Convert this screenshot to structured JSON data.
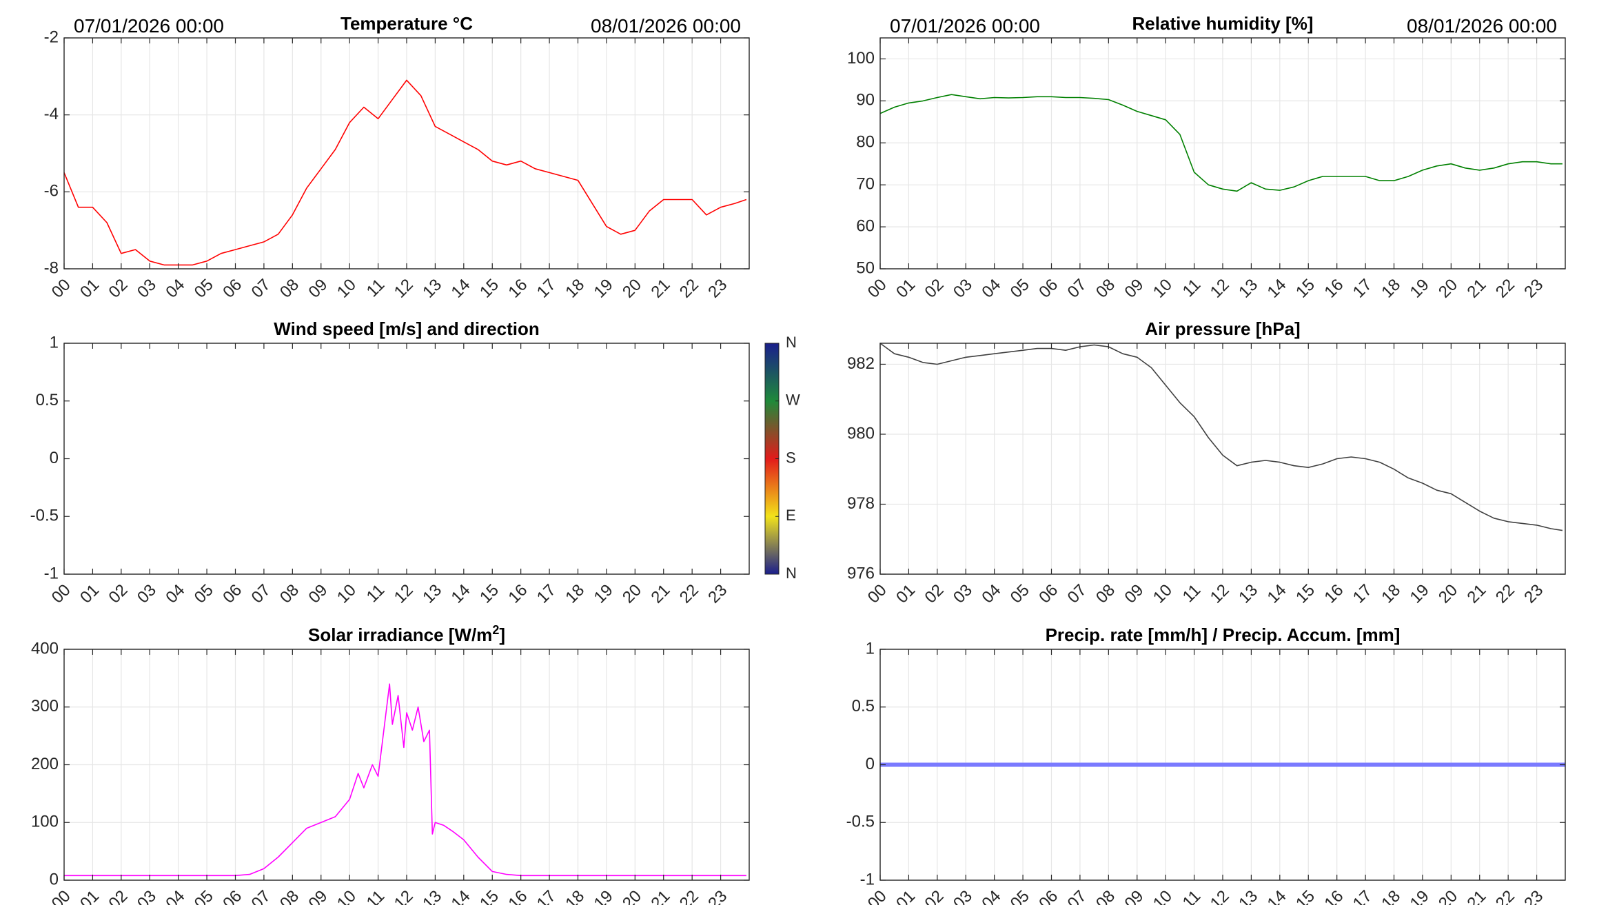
{
  "panels": [
    {
      "id": "temperature",
      "title": "Temperature °C",
      "start_label": "07/01/2026 00:00",
      "end_label": "08/01/2026 00:00"
    },
    {
      "id": "humidity",
      "title": "Relative humidity [%]",
      "start_label": "07/01/2026 00:00",
      "end_label": "08/01/2026 00:00"
    },
    {
      "id": "wind",
      "title": "Wind speed [m/s] and direction"
    },
    {
      "id": "pressure",
      "title": "Air pressure [hPa]"
    },
    {
      "id": "solar",
      "title": "Solar irradiance [W/m",
      "title_sup": "2",
      "title_end": "]"
    },
    {
      "id": "precip",
      "title": "Precip. rate [mm/h] / Precip. Accum. [mm]"
    }
  ],
  "colorbar": {
    "labels": [
      "N",
      "W",
      "S",
      "E",
      "N"
    ],
    "colors": [
      "#1a1e8c",
      "#1f8a3a",
      "#e21b1b",
      "#f2e31a",
      "#1a1e8c"
    ]
  },
  "chart_data": [
    {
      "type": "line",
      "id": "temperature",
      "title": "Temperature °C",
      "xlabel": "",
      "ylabel": "",
      "x_ticks": [
        "00",
        "01",
        "02",
        "03",
        "04",
        "05",
        "06",
        "07",
        "08",
        "09",
        "10",
        "11",
        "12",
        "13",
        "14",
        "15",
        "16",
        "17",
        "18",
        "19",
        "20",
        "21",
        "22",
        "23"
      ],
      "xlim": [
        0,
        24
      ],
      "ylim": [
        -8,
        -2
      ],
      "y_ticks": [
        -8,
        -6,
        -4,
        -2
      ],
      "color": "#ff0000",
      "grid": true,
      "series": [
        {
          "x": [
            0,
            0.5,
            1,
            1.5,
            2,
            2.5,
            3,
            3.5,
            4,
            4.5,
            5,
            5.5,
            6,
            6.5,
            7,
            7.5,
            8,
            8.5,
            9,
            9.5,
            10,
            10.5,
            11,
            11.5,
            12,
            12.5,
            13,
            13.5,
            14,
            14.5,
            15,
            15.5,
            16,
            16.5,
            17,
            17.5,
            18,
            18.5,
            19,
            19.5,
            20,
            20.5,
            21,
            21.5,
            22,
            22.5,
            23,
            23.5,
            23.9
          ],
          "y": [
            -5.5,
            -6.4,
            -6.4,
            -6.8,
            -7.6,
            -7.5,
            -7.8,
            -7.9,
            -7.9,
            -7.9,
            -7.8,
            -7.6,
            -7.5,
            -7.4,
            -7.3,
            -7.1,
            -6.6,
            -5.9,
            -5.4,
            -4.9,
            -4.2,
            -3.8,
            -4.1,
            -3.6,
            -3.1,
            -3.5,
            -4.3,
            -4.5,
            -4.7,
            -4.9,
            -5.2,
            -5.3,
            -5.2,
            -5.4,
            -5.5,
            -5.6,
            -5.7,
            -6.3,
            -6.9,
            -7.1,
            -7.0,
            -6.5,
            -6.2,
            -6.2,
            -6.2,
            -6.6,
            -6.4,
            -6.3,
            -6.2
          ]
        }
      ]
    },
    {
      "type": "line",
      "id": "humidity",
      "title": "Relative humidity [%]",
      "xlabel": "",
      "ylabel": "",
      "x_ticks": [
        "00",
        "01",
        "02",
        "03",
        "04",
        "05",
        "06",
        "07",
        "08",
        "09",
        "10",
        "11",
        "12",
        "13",
        "14",
        "15",
        "16",
        "17",
        "18",
        "19",
        "20",
        "21",
        "22",
        "23"
      ],
      "xlim": [
        0,
        24
      ],
      "ylim": [
        50,
        105
      ],
      "y_ticks": [
        50,
        60,
        70,
        80,
        90,
        100
      ],
      "color": "#008000",
      "grid": true,
      "series": [
        {
          "x": [
            0,
            0.5,
            1,
            1.5,
            2,
            2.5,
            3,
            3.5,
            4,
            4.5,
            5,
            5.5,
            6,
            6.5,
            7,
            7.5,
            8,
            8.5,
            9,
            9.5,
            10,
            10.5,
            11,
            11.5,
            12,
            12.5,
            13,
            13.5,
            14,
            14.5,
            15,
            15.5,
            16,
            16.5,
            17,
            17.5,
            18,
            18.5,
            19,
            19.5,
            20,
            20.5,
            21,
            21.5,
            22,
            22.5,
            23,
            23.5,
            23.9
          ],
          "y": [
            87,
            88.5,
            89.5,
            90,
            90.8,
            91.5,
            91,
            90.5,
            90.8,
            90.7,
            90.8,
            91,
            91,
            90.8,
            90.8,
            90.6,
            90.3,
            89,
            87.5,
            86.5,
            85.5,
            82,
            73,
            70,
            69,
            68.5,
            70.5,
            69,
            68.7,
            69.5,
            71,
            72,
            72,
            72,
            72,
            71,
            71,
            72,
            73.5,
            74.5,
            75,
            74,
            73.5,
            74,
            75,
            75.5,
            75.5,
            75,
            75
          ]
        }
      ]
    },
    {
      "type": "line",
      "id": "wind",
      "title": "Wind speed [m/s] and direction",
      "xlabel": "",
      "ylabel": "",
      "x_ticks": [
        "00",
        "01",
        "02",
        "03",
        "04",
        "05",
        "06",
        "07",
        "08",
        "09",
        "10",
        "11",
        "12",
        "13",
        "14",
        "15",
        "16",
        "17",
        "18",
        "19",
        "20",
        "21",
        "22",
        "23"
      ],
      "xlim": [
        0,
        24
      ],
      "ylim": [
        -1,
        1
      ],
      "y_ticks": [
        -1,
        -0.5,
        0,
        0.5,
        1
      ],
      "grid": false,
      "series": []
    },
    {
      "type": "line",
      "id": "pressure",
      "title": "Air pressure [hPa]",
      "xlabel": "",
      "ylabel": "",
      "x_ticks": [
        "00",
        "01",
        "02",
        "03",
        "04",
        "05",
        "06",
        "07",
        "08",
        "09",
        "10",
        "11",
        "12",
        "13",
        "14",
        "15",
        "16",
        "17",
        "18",
        "19",
        "20",
        "21",
        "22",
        "23"
      ],
      "xlim": [
        0,
        24
      ],
      "ylim": [
        976,
        982.6
      ],
      "y_ticks": [
        976,
        978,
        980,
        982
      ],
      "color": "#404040",
      "grid": true,
      "series": [
        {
          "x": [
            0,
            0.5,
            1,
            1.5,
            2,
            2.5,
            3,
            3.5,
            4,
            4.5,
            5,
            5.5,
            6,
            6.5,
            7,
            7.5,
            8,
            8.5,
            9,
            9.5,
            10,
            10.5,
            11,
            11.5,
            12,
            12.5,
            13,
            13.5,
            14,
            14.5,
            15,
            15.5,
            16,
            16.5,
            17,
            17.5,
            18,
            18.5,
            19,
            19.5,
            20,
            20.5,
            21,
            21.5,
            22,
            22.5,
            23,
            23.5,
            23.9
          ],
          "y": [
            982.6,
            982.3,
            982.2,
            982.05,
            982,
            982.1,
            982.2,
            982.25,
            982.3,
            982.35,
            982.4,
            982.45,
            982.45,
            982.4,
            982.5,
            982.55,
            982.5,
            982.3,
            982.2,
            981.9,
            981.4,
            980.9,
            980.5,
            979.9,
            979.4,
            979.1,
            979.2,
            979.25,
            979.2,
            979.1,
            979.05,
            979.15,
            979.3,
            979.35,
            979.3,
            979.2,
            979.0,
            978.75,
            978.6,
            978.4,
            978.3,
            978.05,
            977.8,
            977.6,
            977.5,
            977.45,
            977.4,
            977.3,
            977.25
          ]
        }
      ]
    },
    {
      "type": "line",
      "id": "solar",
      "title": "Solar irradiance [W/m2]",
      "xlabel": "",
      "ylabel": "",
      "x_ticks": [
        "00",
        "01",
        "02",
        "03",
        "04",
        "05",
        "06",
        "07",
        "08",
        "09",
        "10",
        "11",
        "12",
        "13",
        "14",
        "15",
        "16",
        "17",
        "18",
        "19",
        "20",
        "21",
        "22",
        "23"
      ],
      "xlim": [
        0,
        24
      ],
      "ylim": [
        0,
        400
      ],
      "y_ticks": [
        0,
        100,
        200,
        300,
        400
      ],
      "color": "#ff00ff",
      "grid": true,
      "series": [
        {
          "x": [
            0,
            1,
            2,
            3,
            4,
            5,
            6,
            6.5,
            7,
            7.5,
            8,
            8.5,
            9,
            9.5,
            10,
            10.3,
            10.5,
            10.8,
            11,
            11.2,
            11.4,
            11.5,
            11.7,
            11.9,
            12,
            12.2,
            12.4,
            12.6,
            12.8,
            12.9,
            13,
            13.3,
            13.6,
            14,
            14.5,
            15,
            15.5,
            16,
            17,
            18,
            19,
            20,
            21,
            22,
            23,
            23.9
          ],
          "y": [
            8,
            8,
            8,
            8,
            8,
            8,
            8,
            10,
            20,
            40,
            65,
            90,
            100,
            110,
            140,
            185,
            160,
            200,
            180,
            260,
            340,
            270,
            320,
            230,
            290,
            260,
            300,
            240,
            260,
            80,
            100,
            95,
            85,
            70,
            40,
            15,
            10,
            8,
            8,
            8,
            8,
            8,
            8,
            8,
            8,
            8
          ]
        }
      ]
    },
    {
      "type": "line",
      "id": "precip",
      "title": "Precip. rate [mm/h] / Precip. Accum. [mm]",
      "xlabel": "",
      "ylabel": "",
      "x_ticks": [
        "00",
        "01",
        "02",
        "03",
        "04",
        "05",
        "06",
        "07",
        "08",
        "09",
        "10",
        "11",
        "12",
        "13",
        "14",
        "15",
        "16",
        "17",
        "18",
        "19",
        "20",
        "21",
        "22",
        "23"
      ],
      "xlim": [
        0,
        24
      ],
      "ylim": [
        -1,
        1
      ],
      "y_ticks": [
        -1,
        -0.5,
        0,
        0.5,
        1
      ],
      "color": "#7a7aff",
      "grid": true,
      "series": [
        {
          "x": [
            0,
            24
          ],
          "y": [
            0,
            0
          ]
        }
      ]
    }
  ]
}
